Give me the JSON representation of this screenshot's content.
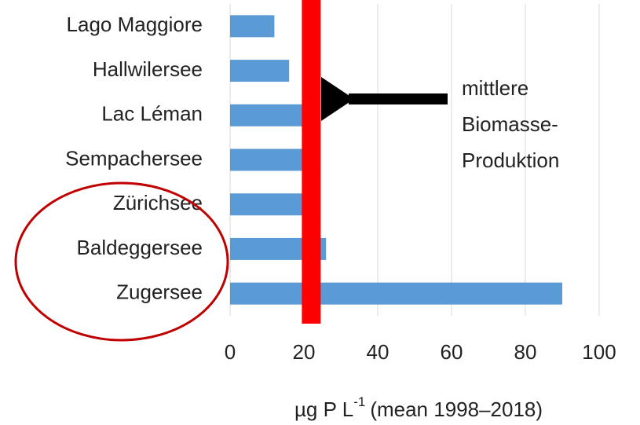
{
  "chart_data": {
    "type": "hbar",
    "categories": [
      "Lago Maggiore",
      "Hallwilersee",
      "Lac Léman",
      "Sempachersee",
      "Zürichsee",
      "Baldeggersee",
      "Zugersee"
    ],
    "values": [
      12,
      16,
      20,
      20,
      20,
      26,
      90
    ],
    "color": "#5b9bd5",
    "xlim": [
      0,
      100
    ],
    "xticks": [
      0,
      20,
      40,
      60,
      80,
      100
    ],
    "grid": true,
    "x_label": {
      "text": "µg P L",
      "superscript": "-1",
      "suffix": "(mean 1998–2018)"
    },
    "reference_line": {
      "value": 22,
      "color": "#ff0000"
    },
    "annotation": [
      "mittlere",
      "Biomasse-",
      "Produktion"
    ]
  }
}
